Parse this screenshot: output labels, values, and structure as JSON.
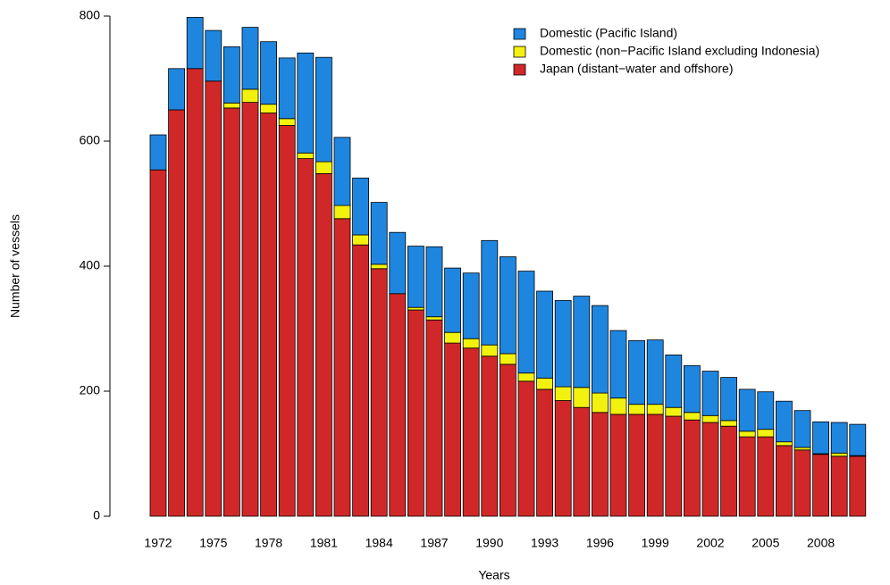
{
  "chart_data": {
    "type": "stacked-bar",
    "x_label": "Years",
    "y_label": "Number of vessels",
    "categories": [
      "1972",
      null,
      null,
      "1975",
      null,
      null,
      "1978",
      null,
      null,
      "1981",
      null,
      null,
      "1984",
      null,
      null,
      "1987",
      null,
      null,
      "1990",
      null,
      null,
      "1993",
      null,
      null,
      "1996",
      null,
      null,
      "1999",
      null,
      null,
      "2002",
      null,
      null,
      "2005",
      null,
      null,
      "2008",
      null,
      null
    ],
    "series": [
      {
        "name": "Domestic (Pacific Island)",
        "color": "#1f86e0",
        "values": [
          56,
          66,
          82,
          81,
          90,
          99,
          100,
          97,
          160,
          167,
          109,
          91,
          99,
          98,
          98,
          112,
          103,
          105,
          167,
          155,
          163,
          139,
          138,
          146,
          140,
          108,
          102,
          103,
          84,
          75,
          71,
          69,
          67,
          60,
          65,
          59,
          51,
          49,
          50
        ]
      },
      {
        "name": "Domestic (non−Pacific Island excluding Indonesia)",
        "color": "#f2f20e",
        "values": [
          0,
          0,
          0,
          0,
          8,
          21,
          14,
          11,
          9,
          19,
          21,
          16,
          7,
          0,
          4,
          5,
          17,
          15,
          18,
          17,
          13,
          18,
          22,
          32,
          31,
          26,
          16,
          16,
          14,
          12,
          11,
          9,
          9,
          12,
          6,
          4,
          1,
          5,
          1
        ]
      },
      {
        "name": "Japan (distant−water and offshore)",
        "color": "#d02828",
        "values": [
          554,
          650,
          716,
          696,
          653,
          662,
          645,
          625,
          572,
          548,
          476,
          434,
          396,
          356,
          330,
          314,
          277,
          269,
          256,
          243,
          216,
          203,
          185,
          174,
          166,
          163,
          163,
          163,
          160,
          154,
          150,
          144,
          127,
          127,
          113,
          106,
          99,
          96,
          96
        ]
      }
    ],
    "ylim": [
      0,
      800
    ],
    "yticks": [
      0,
      200,
      400,
      600,
      800
    ]
  }
}
